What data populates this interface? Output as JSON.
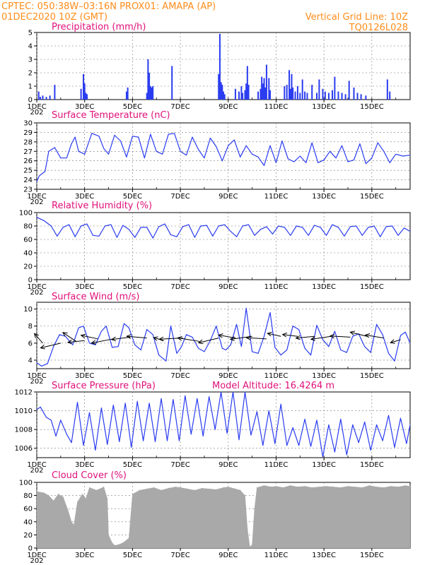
{
  "header": {
    "line1_left": "CPTEC:    050:38W–03:16N   PROX01: AMAPA (AP)",
    "line2_left": "01DEC2020 10Z (GMT)",
    "line1_right": "Vertical Grid Line: 10Z",
    "line2_right": "TQ0126L028"
  },
  "colors": {
    "header": "#ff8c1a",
    "title": "#e0107a",
    "series": "#2a3cf0",
    "cloud": "#a9a9a9",
    "arrow": "#000000"
  },
  "x_axis": {
    "start_day": 1,
    "end_day": 16.6,
    "ticks": [
      {
        "day": 1,
        "label": "1DEC"
      },
      {
        "day": 3,
        "label": "3DEC"
      },
      {
        "day": 5,
        "label": "5DEC"
      },
      {
        "day": 7,
        "label": "7DEC"
      },
      {
        "day": 9,
        "label": "9DEC"
      },
      {
        "day": 11,
        "label": "11DEC"
      },
      {
        "day": 13,
        "label": "13DEC"
      },
      {
        "day": 15,
        "label": "15DEC"
      }
    ],
    "first_label_extra": "202"
  },
  "chart_data": [
    {
      "id": "precipitation",
      "type": "bar",
      "title": "Precipitation (mm/h)",
      "ylim": [
        0,
        5
      ],
      "yticks": [
        0,
        1,
        2,
        3,
        4,
        5
      ],
      "x": [
        1.08,
        1.15,
        1.25,
        1.4,
        1.55,
        1.75,
        2.85,
        2.95,
        3.0,
        3.05,
        3.1,
        4.75,
        4.8,
        5.6,
        5.65,
        5.7,
        5.75,
        5.8,
        5.85,
        6.65,
        8.6,
        8.65,
        8.7,
        8.75,
        8.8,
        8.85,
        9.3,
        9.45,
        9.55,
        9.6,
        9.7,
        9.75,
        9.8,
        9.85,
        10.25,
        10.35,
        10.4,
        10.45,
        10.5,
        10.55,
        10.6,
        10.7,
        10.75,
        11.35,
        11.45,
        11.55,
        11.6,
        11.65,
        11.7,
        11.8,
        11.9,
        12.0,
        12.1,
        12.2,
        12.3,
        12.5,
        12.7,
        12.8,
        12.95,
        13.05,
        13.2,
        13.35,
        13.45,
        13.6,
        13.75,
        13.9,
        14.05,
        14.25,
        14.4,
        14.55,
        14.75,
        15.65,
        15.75
      ],
      "values": [
        0.6,
        0.2,
        0.3,
        0.2,
        0.3,
        1.1,
        0.8,
        1.9,
        1.2,
        0.5,
        0.4,
        0.6,
        0.9,
        0.5,
        3.0,
        2.0,
        1.0,
        0.9,
        1.0,
        2.5,
        1.9,
        4.9,
        1.3,
        1.1,
        0.6,
        0.4,
        0.8,
        0.6,
        1.0,
        0.5,
        0.7,
        1.2,
        2.5,
        1.1,
        0.6,
        0.8,
        1.7,
        1.2,
        1.6,
        0.9,
        2.6,
        1.6,
        0.7,
        1.0,
        1.1,
        2.2,
        0.8,
        1.9,
        0.9,
        0.6,
        1.0,
        0.5,
        1.5,
        0.6,
        0.5,
        1.1,
        0.5,
        1.5,
        0.8,
        0.6,
        0.5,
        0.7,
        1.7,
        0.6,
        0.5,
        0.4,
        1.4,
        0.9,
        0.5,
        0.4,
        0.3,
        1.5,
        0.6
      ]
    },
    {
      "id": "temperature",
      "type": "line",
      "title": "Surface Temperature (nC)",
      "ylim": [
        23,
        30
      ],
      "yticks": [
        23,
        24,
        25,
        26,
        27,
        28,
        29,
        30
      ],
      "x": [
        1.0,
        1.1,
        1.2,
        1.35,
        1.5,
        1.75,
        2.0,
        2.25,
        2.45,
        2.6,
        2.75,
        3.0,
        3.3,
        3.6,
        3.8,
        4.0,
        4.25,
        4.5,
        4.75,
        5.0,
        5.25,
        5.5,
        5.75,
        6.0,
        6.25,
        6.5,
        6.75,
        7.0,
        7.25,
        7.5,
        7.75,
        8.0,
        8.25,
        8.5,
        8.75,
        9.0,
        9.25,
        9.5,
        9.75,
        10.0,
        10.25,
        10.5,
        10.75,
        11.0,
        11.25,
        11.5,
        11.75,
        12.0,
        12.25,
        12.5,
        12.75,
        13.0,
        13.25,
        13.5,
        13.75,
        14.0,
        14.25,
        14.5,
        14.75,
        15.0,
        15.25,
        15.5,
        15.75,
        16.0,
        16.3,
        16.6
      ],
      "values": [
        23.8,
        24.4,
        24.6,
        24.9,
        27.0,
        27.4,
        26.3,
        26.3,
        27.8,
        28.5,
        27.0,
        26.7,
        28.9,
        28.6,
        27.3,
        26.7,
        28.7,
        28.1,
        26.4,
        28.6,
        28.5,
        26.3,
        28.8,
        27.0,
        26.7,
        28.8,
        28.9,
        27.0,
        26.6,
        28.5,
        27.2,
        26.3,
        28.4,
        27.5,
        26.0,
        27.6,
        28.2,
        26.4,
        27.6,
        26.7,
        26.4,
        25.5,
        27.6,
        25.8,
        28.1,
        26.2,
        25.9,
        26.5,
        25.8,
        27.9,
        25.8,
        26.1,
        27.0,
        26.3,
        27.6,
        25.9,
        26.1,
        27.8,
        25.7,
        26.3,
        27.9,
        27.0,
        25.8,
        26.7,
        26.5,
        26.6
      ]
    },
    {
      "id": "humidity",
      "type": "line",
      "title": "Relative Humidity (%)",
      "ylim": [
        0,
        100
      ],
      "yticks": [
        0,
        20,
        40,
        60,
        80,
        100
      ],
      "x": [
        1.0,
        1.3,
        1.6,
        1.85,
        2.1,
        2.35,
        2.6,
        2.85,
        3.1,
        3.35,
        3.6,
        3.85,
        4.1,
        4.35,
        4.6,
        4.85,
        5.1,
        5.35,
        5.6,
        5.85,
        6.1,
        6.35,
        6.6,
        6.85,
        7.1,
        7.35,
        7.6,
        7.85,
        8.1,
        8.35,
        8.6,
        8.85,
        9.1,
        9.35,
        9.6,
        9.85,
        10.1,
        10.35,
        10.6,
        10.85,
        11.1,
        11.35,
        11.6,
        11.85,
        12.1,
        12.35,
        12.6,
        12.85,
        13.1,
        13.35,
        13.6,
        13.85,
        14.1,
        14.35,
        14.6,
        14.85,
        15.1,
        15.35,
        15.6,
        15.85,
        16.1,
        16.35,
        16.6
      ],
      "values": [
        93,
        88,
        80,
        65,
        78,
        82,
        64,
        80,
        83,
        66,
        65,
        80,
        82,
        63,
        81,
        75,
        63,
        78,
        78,
        62,
        79,
        83,
        67,
        64,
        79,
        82,
        63,
        80,
        81,
        65,
        80,
        82,
        72,
        64,
        80,
        82,
        66,
        75,
        79,
        68,
        80,
        78,
        66,
        80,
        78,
        66,
        81,
        78,
        66,
        82,
        78,
        65,
        79,
        80,
        66,
        78,
        80,
        64,
        79,
        80,
        66,
        77,
        72
      ]
    },
    {
      "id": "wind",
      "type": "line",
      "title": "Surface Wind (m/s)",
      "ylim": [
        3,
        10.8
      ],
      "yticks": [
        4,
        6,
        8,
        10
      ],
      "x": [
        1.0,
        1.2,
        1.45,
        1.7,
        1.95,
        2.2,
        2.5,
        2.75,
        2.95,
        3.2,
        3.45,
        3.7,
        3.9,
        4.15,
        4.4,
        4.65,
        4.85,
        5.1,
        5.35,
        5.6,
        5.85,
        6.1,
        6.4,
        6.6,
        6.85,
        7.05,
        7.25,
        7.5,
        7.75,
        8.0,
        8.25,
        8.5,
        8.75,
        8.9,
        9.1,
        9.35,
        9.55,
        9.75,
        10.0,
        10.25,
        10.5,
        10.75,
        10.95,
        11.2,
        11.45,
        11.7,
        11.95,
        12.2,
        12.45,
        12.7,
        12.95,
        13.2,
        13.45,
        13.7,
        13.95,
        14.2,
        14.45,
        14.7,
        14.95,
        15.2,
        15.45,
        15.7,
        15.95,
        16.2,
        16.4,
        16.6
      ],
      "values": [
        3.7,
        3.3,
        3.6,
        5.6,
        7.0,
        6.8,
        5.8,
        7.8,
        8.0,
        6.0,
        5.8,
        7.4,
        8.0,
        5.5,
        5.6,
        8.3,
        7.8,
        5.8,
        5.2,
        7.6,
        7.0,
        4.6,
        3.9,
        8.0,
        4.8,
        5.6,
        7.0,
        6.7,
        5.4,
        5.0,
        6.3,
        8.0,
        5.4,
        5.2,
        5.8,
        8.2,
        5.6,
        10.1,
        5.0,
        4.8,
        6.8,
        9.6,
        5.5,
        4.6,
        5.2,
        8.0,
        7.6,
        5.4,
        4.6,
        8.1,
        6.4,
        5.6,
        7.4,
        5.2,
        4.9,
        6.8,
        7.1,
        5.6,
        4.9,
        8.2,
        7.0,
        4.8,
        3.9,
        6.9,
        7.3,
        6.0
      ],
      "vectors": [
        {
          "x": 1.25,
          "y": 6.0,
          "dx": -0.5,
          "dy": 1.6
        },
        {
          "x": 2.0,
          "y": 6.0,
          "dx": -1.2,
          "dy": -0.8
        },
        {
          "x": 2.65,
          "y": 6.2,
          "dx": -0.8,
          "dy": 1.5
        },
        {
          "x": 3.0,
          "y": 6.3,
          "dx": -1.0,
          "dy": -0.3
        },
        {
          "x": 3.55,
          "y": 6.5,
          "dx": -1.0,
          "dy": 0.6
        },
        {
          "x": 4.2,
          "y": 6.5,
          "dx": -1.3,
          "dy": -0.7
        },
        {
          "x": 4.9,
          "y": 6.7,
          "dx": -1.1,
          "dy": -0.4
        },
        {
          "x": 5.6,
          "y": 6.6,
          "dx": -1.2,
          "dy": 0.3
        },
        {
          "x": 6.3,
          "y": 6.3,
          "dx": -0.6,
          "dy": 0.5
        },
        {
          "x": 7.1,
          "y": 6.6,
          "dx": -1.4,
          "dy": -0.2
        },
        {
          "x": 7.8,
          "y": 6.2,
          "dx": -1.3,
          "dy": 0.6
        },
        {
          "x": 8.6,
          "y": 6.6,
          "dx": -1.2,
          "dy": -0.8
        },
        {
          "x": 9.3,
          "y": 6.6,
          "dx": -1.0,
          "dy": 0.5
        },
        {
          "x": 10.0,
          "y": 6.8,
          "dx": -1.3,
          "dy": -0.5
        },
        {
          "x": 10.6,
          "y": 6.5,
          "dx": -1.2,
          "dy": 0.2
        },
        {
          "x": 11.2,
          "y": 6.8,
          "dx": -0.8,
          "dy": 0.5
        },
        {
          "x": 11.9,
          "y": 6.8,
          "dx": -0.9,
          "dy": 0.3
        },
        {
          "x": 12.6,
          "y": 6.8,
          "dx": -1.1,
          "dy": -0.3
        },
        {
          "x": 13.3,
          "y": 6.8,
          "dx": -1.2,
          "dy": -0.5
        },
        {
          "x": 14.1,
          "y": 6.7,
          "dx": -1.2,
          "dy": 0.2
        },
        {
          "x": 14.8,
          "y": 6.8,
          "dx": -1.0,
          "dy": 0.7
        },
        {
          "x": 15.5,
          "y": 6.6,
          "dx": -1.1,
          "dy": 0.5
        },
        {
          "x": 16.2,
          "y": 6.4,
          "dx": -0.6,
          "dy": -0.5
        }
      ]
    },
    {
      "id": "pressure",
      "type": "line",
      "title": "Surface Pressure (hPa)",
      "annotation": "Model Altitude: 16.4264  m",
      "ylim": [
        1005,
        1012
      ],
      "yticks": [
        1006,
        1008,
        1010,
        1012
      ],
      "x": [
        1.0,
        1.15,
        1.4,
        1.6,
        1.8,
        2.0,
        2.25,
        2.45,
        2.7,
        2.95,
        3.2,
        3.45,
        3.7,
        3.95,
        4.2,
        4.45,
        4.7,
        4.95,
        5.2,
        5.45,
        5.7,
        5.95,
        6.2,
        6.45,
        6.7,
        6.95,
        7.2,
        7.45,
        7.7,
        7.95,
        8.2,
        8.45,
        8.7,
        8.95,
        9.2,
        9.45,
        9.7,
        9.95,
        10.2,
        10.45,
        10.7,
        10.95,
        11.2,
        11.45,
        11.7,
        11.95,
        12.2,
        12.45,
        12.7,
        12.95,
        13.2,
        13.45,
        13.7,
        13.95,
        14.2,
        14.45,
        14.7,
        14.95,
        15.2,
        15.45,
        15.7,
        15.95,
        16.2,
        16.45,
        16.6
      ],
      "values": [
        1010.1,
        1010.4,
        1009.3,
        1009.0,
        1007.3,
        1009.0,
        1007.5,
        1006.6,
        1010.9,
        1006.3,
        1009.8,
        1005.8,
        1010.3,
        1006.4,
        1010.6,
        1006.7,
        1010.8,
        1006.1,
        1011.0,
        1006.8,
        1010.8,
        1006.7,
        1011.3,
        1006.8,
        1011.2,
        1006.8,
        1011.6,
        1007.5,
        1011.3,
        1007.3,
        1011.5,
        1008.0,
        1012.0,
        1007.6,
        1012.0,
        1006.9,
        1012.0,
        1007.4,
        1009.9,
        1006.3,
        1010.0,
        1006.5,
        1010.7,
        1006.3,
        1008.2,
        1006.3,
        1009.1,
        1006.2,
        1009.0,
        1005.1,
        1008.5,
        1005.6,
        1009.1,
        1005.3,
        1008.5,
        1006.6,
        1008.8,
        1005.8,
        1008.5,
        1006.8,
        1009.5,
        1006.1,
        1009.2,
        1006.5,
        1008.5
      ]
    },
    {
      "id": "cloud",
      "type": "area",
      "title": "Cloud Cover (%)",
      "ylim": [
        0,
        100
      ],
      "yticks": [
        0,
        20,
        40,
        60,
        80,
        100
      ],
      "x": [
        1.0,
        1.3,
        1.5,
        1.7,
        1.9,
        2.1,
        2.3,
        2.45,
        2.55,
        2.7,
        2.9,
        3.05,
        3.2,
        3.5,
        3.8,
        3.95,
        4.0,
        4.15,
        4.25,
        4.4,
        4.6,
        4.85,
        5.0,
        5.3,
        5.6,
        5.9,
        6.2,
        6.5,
        6.8,
        7.0,
        7.3,
        7.6,
        7.9,
        8.2,
        8.5,
        8.8,
        9.0,
        9.3,
        9.5,
        9.7,
        9.8,
        9.9,
        10.0,
        10.1,
        10.2,
        10.5,
        10.8,
        11.0,
        11.3,
        11.6,
        11.9,
        12.2,
        12.5,
        12.8,
        13.1,
        13.4,
        13.7,
        14.0,
        14.3,
        14.6,
        14.9,
        15.2,
        15.5,
        15.8,
        16.1,
        16.4,
        16.6
      ],
      "values": [
        86,
        84,
        80,
        72,
        82,
        78,
        58,
        40,
        35,
        70,
        82,
        75,
        92,
        88,
        93,
        75,
        20,
        8,
        4,
        5,
        8,
        15,
        82,
        88,
        90,
        92,
        88,
        91,
        93,
        92,
        90,
        88,
        91,
        90,
        89,
        92,
        93,
        90,
        88,
        80,
        30,
        2,
        5,
        60,
        92,
        95,
        93,
        94,
        92,
        95,
        93,
        94,
        92,
        93,
        94,
        93,
        92,
        94,
        93,
        92,
        95,
        93,
        92,
        94,
        93,
        95,
        94
      ]
    }
  ]
}
